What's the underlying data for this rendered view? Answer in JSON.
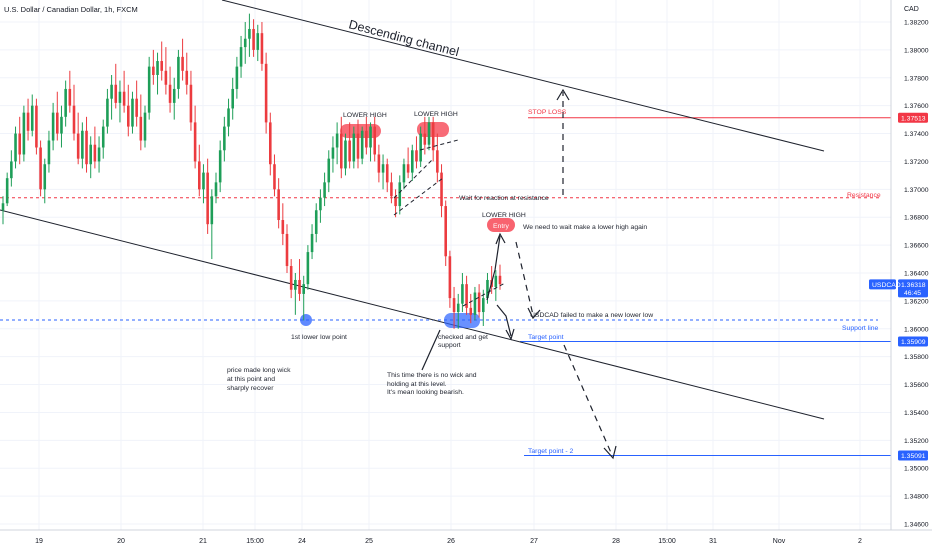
{
  "header": {
    "title": "U.S. Dollar / Canadian Dollar, 1h, FXCM"
  },
  "chart_data": {
    "type": "candlestick",
    "symbol": "USDCAD",
    "currency": "CAD",
    "ylim": [
      1.3455,
      1.383
    ],
    "y_ticks": [
      "1.38200",
      "1.38000",
      "1.37800",
      "1.37600",
      "1.37400",
      "1.37200",
      "1.37000",
      "1.36800",
      "1.36600",
      "1.36400",
      "1.36200",
      "1.36000",
      "1.35800",
      "1.35600",
      "1.35400",
      "1.35200",
      "1.35000",
      "1.34800",
      "1.34600"
    ],
    "x_ticks": [
      "19",
      "20",
      "21",
      "15:00",
      "24",
      "25",
      "26",
      "27",
      "28",
      "15:00",
      "31",
      "Nov",
      "2"
    ],
    "price_badges": [
      {
        "label": "1.37513",
        "value": 1.37513,
        "color": "#f23645"
      },
      {
        "label": "1.36318",
        "sub": "46:45",
        "value": 1.36318,
        "color": "#2962ff",
        "name": "USDCAD"
      },
      {
        "label": "1.35909",
        "value": 1.35909,
        "color": "#2962ff"
      },
      {
        "label": "1.35091",
        "value": 1.35091,
        "color": "#2962ff"
      }
    ],
    "levels": [
      {
        "label": "STOP LOSS",
        "value": 1.37513,
        "color": "#f23645",
        "style": "solid"
      },
      {
        "label": "Resistance",
        "value": 1.3694,
        "color": "#f23645",
        "style": "dashed"
      },
      {
        "label": "Support line",
        "value": 1.36063,
        "color": "#2962ff",
        "style": "dashed"
      },
      {
        "label": "Target point",
        "value": 1.35909,
        "color": "#2962ff",
        "style": "solid"
      },
      {
        "label": "Target point - 2",
        "value": 1.35091,
        "color": "#2962ff",
        "style": "solid"
      }
    ],
    "channel_label": "Descending channel",
    "annotations": [
      "LOWER HIGH",
      "LOWER HIGH",
      "LOWER HIGH",
      "Entry",
      "Wait for reaction at resistance",
      "We need to wait make a lower high again",
      "USDCAD failed to make a new lower low",
      "1st lower low point",
      "checked and get support",
      "price made long wick at this point and sharply recover",
      "This time there is no wick and holding at this level. It's mean looking bearish."
    ],
    "ohlc": [
      [
        1.3685,
        1.3695,
        1.3675,
        1.369
      ],
      [
        1.369,
        1.3712,
        1.3688,
        1.3708
      ],
      [
        1.3708,
        1.3728,
        1.3702,
        1.372
      ],
      [
        1.372,
        1.3745,
        1.3715,
        1.374
      ],
      [
        1.374,
        1.3752,
        1.3718,
        1.3725
      ],
      [
        1.3725,
        1.376,
        1.372,
        1.3755
      ],
      [
        1.3755,
        1.3765,
        1.3735,
        1.3742
      ],
      [
        1.3742,
        1.3768,
        1.3738,
        1.376
      ],
      [
        1.376,
        1.3765,
        1.3725,
        1.373
      ],
      [
        1.373,
        1.3735,
        1.3695,
        1.37
      ],
      [
        1.37,
        1.3722,
        1.369,
        1.3718
      ],
      [
        1.3718,
        1.3742,
        1.3712,
        1.3735
      ],
      [
        1.3735,
        1.3762,
        1.3728,
        1.3755
      ],
      [
        1.3755,
        1.377,
        1.3735,
        1.374
      ],
      [
        1.374,
        1.376,
        1.373,
        1.3752
      ],
      [
        1.3752,
        1.3778,
        1.3745,
        1.3772
      ],
      [
        1.3772,
        1.3785,
        1.3755,
        1.376
      ],
      [
        1.376,
        1.3775,
        1.3735,
        1.374
      ],
      [
        1.374,
        1.3755,
        1.3718,
        1.3722
      ],
      [
        1.3722,
        1.3748,
        1.3715,
        1.3742
      ],
      [
        1.3742,
        1.3752,
        1.3712,
        1.3718
      ],
      [
        1.3718,
        1.3738,
        1.3708,
        1.3732
      ],
      [
        1.3732,
        1.3745,
        1.3715,
        1.372
      ],
      [
        1.372,
        1.3738,
        1.3712,
        1.373
      ],
      [
        1.373,
        1.375,
        1.3722,
        1.3745
      ],
      [
        1.3745,
        1.3772,
        1.374,
        1.3765
      ],
      [
        1.3765,
        1.3782,
        1.375,
        1.3775
      ],
      [
        1.3775,
        1.379,
        1.3758,
        1.3762
      ],
      [
        1.3762,
        1.3778,
        1.3748,
        1.377
      ],
      [
        1.377,
        1.3785,
        1.3755,
        1.376
      ],
      [
        1.376,
        1.3775,
        1.3738,
        1.3745
      ],
      [
        1.3745,
        1.377,
        1.374,
        1.3765
      ],
      [
        1.3765,
        1.3778,
        1.3745,
        1.3752
      ],
      [
        1.3752,
        1.3768,
        1.3728,
        1.3735
      ],
      [
        1.3735,
        1.376,
        1.373,
        1.3755
      ],
      [
        1.3755,
        1.3795,
        1.375,
        1.3788
      ],
      [
        1.3788,
        1.38,
        1.3775,
        1.3782
      ],
      [
        1.3782,
        1.3798,
        1.3768,
        1.3792
      ],
      [
        1.3792,
        1.3806,
        1.3778,
        1.3785
      ],
      [
        1.3785,
        1.3802,
        1.3768,
        1.3775
      ],
      [
        1.3775,
        1.3788,
        1.3755,
        1.3762
      ],
      [
        1.3762,
        1.378,
        1.375,
        1.3772
      ],
      [
        1.3772,
        1.38,
        1.3765,
        1.3795
      ],
      [
        1.3795,
        1.3808,
        1.3778,
        1.3785
      ],
      [
        1.3785,
        1.3798,
        1.3768,
        1.3775
      ],
      [
        1.3775,
        1.3785,
        1.3742,
        1.3748
      ],
      [
        1.3748,
        1.376,
        1.3715,
        1.372
      ],
      [
        1.372,
        1.3732,
        1.3695,
        1.37
      ],
      [
        1.37,
        1.3718,
        1.369,
        1.3712
      ],
      [
        1.3712,
        1.3722,
        1.3668,
        1.3675
      ],
      [
        1.3675,
        1.37,
        1.365,
        1.3695
      ],
      [
        1.3695,
        1.3712,
        1.369,
        1.3705
      ],
      [
        1.3705,
        1.3735,
        1.3698,
        1.3728
      ],
      [
        1.3728,
        1.3752,
        1.372,
        1.3745
      ],
      [
        1.3745,
        1.3765,
        1.3738,
        1.3758
      ],
      [
        1.3758,
        1.378,
        1.375,
        1.3772
      ],
      [
        1.3772,
        1.3795,
        1.3765,
        1.3788
      ],
      [
        1.3788,
        1.381,
        1.378,
        1.3802
      ],
      [
        1.3802,
        1.382,
        1.379,
        1.3808
      ],
      [
        1.3808,
        1.3826,
        1.3795,
        1.3815
      ],
      [
        1.3815,
        1.3822,
        1.3795,
        1.38
      ],
      [
        1.38,
        1.3818,
        1.3792,
        1.3812
      ],
      [
        1.3812,
        1.382,
        1.3785,
        1.379
      ],
      [
        1.379,
        1.3798,
        1.374,
        1.3748
      ],
      [
        1.3748,
        1.3755,
        1.371,
        1.3718
      ],
      [
        1.3718,
        1.3725,
        1.3695,
        1.37
      ],
      [
        1.37,
        1.3708,
        1.3672,
        1.3678
      ],
      [
        1.3678,
        1.369,
        1.366,
        1.3668
      ],
      [
        1.3668,
        1.3675,
        1.364,
        1.3645
      ],
      [
        1.3645,
        1.365,
        1.3622,
        1.3628
      ],
      [
        1.3628,
        1.364,
        1.361,
        1.3635
      ],
      [
        1.3635,
        1.365,
        1.362,
        1.3625
      ],
      [
        1.3625,
        1.3638,
        1.3606,
        1.3632
      ],
      [
        1.3632,
        1.366,
        1.3628,
        1.3655
      ],
      [
        1.3655,
        1.3675,
        1.365,
        1.3668
      ],
      [
        1.3668,
        1.369,
        1.3662,
        1.3685
      ],
      [
        1.3685,
        1.37,
        1.3676,
        1.3694
      ],
      [
        1.3694,
        1.3712,
        1.3688,
        1.3705
      ],
      [
        1.3705,
        1.3728,
        1.3698,
        1.3722
      ],
      [
        1.3722,
        1.3738,
        1.3712,
        1.373
      ],
      [
        1.373,
        1.3748,
        1.3718,
        1.374
      ],
      [
        1.374,
        1.3752,
        1.3708,
        1.3715
      ],
      [
        1.3715,
        1.374,
        1.371,
        1.3735
      ],
      [
        1.3735,
        1.3748,
        1.3715,
        1.372
      ],
      [
        1.372,
        1.3745,
        1.3715,
        1.374
      ],
      [
        1.374,
        1.375,
        1.3715,
        1.3722
      ],
      [
        1.3722,
        1.3745,
        1.3718,
        1.3742
      ],
      [
        1.3742,
        1.3752,
        1.3725,
        1.373
      ],
      [
        1.373,
        1.3748,
        1.372,
        1.3745
      ],
      [
        1.3745,
        1.3752,
        1.372,
        1.3725
      ],
      [
        1.3725,
        1.3732,
        1.3705,
        1.3712
      ],
      [
        1.3712,
        1.3725,
        1.37,
        1.3718
      ],
      [
        1.3718,
        1.3722,
        1.3698,
        1.3705
      ],
      [
        1.3705,
        1.3712,
        1.369,
        1.3695
      ],
      [
        1.3695,
        1.37,
        1.368,
        1.3688
      ],
      [
        1.3688,
        1.371,
        1.3682,
        1.3705
      ],
      [
        1.3705,
        1.3722,
        1.37,
        1.3718
      ],
      [
        1.3718,
        1.373,
        1.3708,
        1.3712
      ],
      [
        1.3712,
        1.3732,
        1.3706,
        1.3728
      ],
      [
        1.3728,
        1.3738,
        1.3715,
        1.372
      ],
      [
        1.372,
        1.3745,
        1.3716,
        1.374
      ],
      [
        1.374,
        1.3752,
        1.3725,
        1.3732
      ],
      [
        1.3732,
        1.3752,
        1.3728,
        1.3748
      ],
      [
        1.3748,
        1.3752,
        1.372,
        1.3728
      ],
      [
        1.3728,
        1.374,
        1.3705,
        1.3712
      ],
      [
        1.3712,
        1.3718,
        1.368,
        1.3688
      ],
      [
        1.3688,
        1.3692,
        1.3645,
        1.3652
      ],
      [
        1.3652,
        1.3656,
        1.3615,
        1.3622
      ],
      [
        1.3622,
        1.363,
        1.36,
        1.3612
      ],
      [
        1.3612,
        1.3625,
        1.36,
        1.3618
      ],
      [
        1.3618,
        1.364,
        1.3612,
        1.3632
      ],
      [
        1.3632,
        1.3638,
        1.361,
        1.3615
      ],
      [
        1.3615,
        1.3625,
        1.3604,
        1.361
      ],
      [
        1.361,
        1.363,
        1.3606,
        1.3626
      ],
      [
        1.3626,
        1.3632,
        1.3608,
        1.3612
      ],
      [
        1.3612,
        1.3628,
        1.3602,
        1.3622
      ],
      [
        1.3622,
        1.364,
        1.3618,
        1.3635
      ],
      [
        1.3635,
        1.3645,
        1.3625,
        1.363
      ],
      [
        1.363,
        1.3642,
        1.362,
        1.3638
      ],
      [
        1.3638,
        1.3646,
        1.3628,
        1.3632
      ]
    ]
  }
}
